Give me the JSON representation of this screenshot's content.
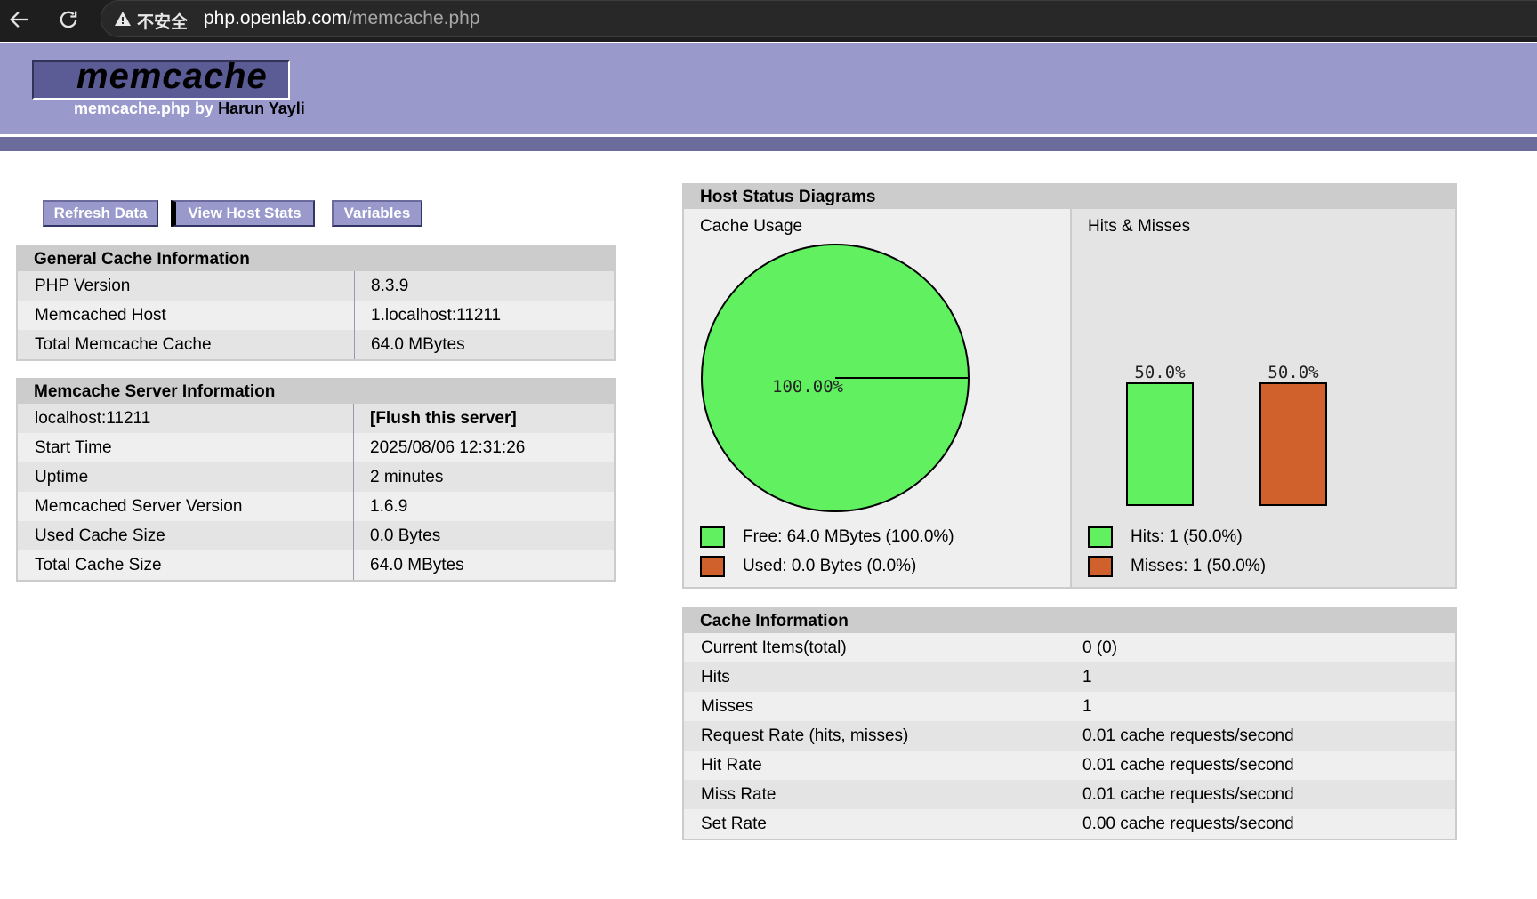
{
  "browser": {
    "insecure_label": "不安全",
    "url_host": "php.openlab.com",
    "url_path": "/memcache.php"
  },
  "header": {
    "logo": "memcache",
    "subtitle": "memcache.php by",
    "author": "Harun Yayli"
  },
  "menu": {
    "refresh": "Refresh Data",
    "host_stats": "View Host Stats",
    "variables": "Variables"
  },
  "general": {
    "title": "General Cache Information",
    "rows": [
      {
        "k": "PHP Version",
        "v": "8.3.9"
      },
      {
        "k": "Memcached Host",
        "v": "1.localhost:11211"
      },
      {
        "k": "Total Memcache Cache",
        "v": "64.0 MBytes"
      }
    ]
  },
  "server": {
    "title": "Memcache Server Information",
    "host": "localhost:11211",
    "flush": "[Flush this server]",
    "rows": [
      {
        "k": "Start Time",
        "v": "2025/08/06 12:31:26"
      },
      {
        "k": "Uptime",
        "v": "2 minutes"
      },
      {
        "k": "Memcached Server Version",
        "v": "1.6.9"
      },
      {
        "k": "Used Cache Size",
        "v": "0.0 Bytes"
      },
      {
        "k": "Total Cache Size",
        "v": "64.0 MBytes"
      }
    ]
  },
  "diagrams": {
    "title": "Host Status Diagrams",
    "cache_usage_title": "Cache Usage",
    "hits_misses_title": "Hits & Misses",
    "free_legend": "Free: 64.0 MBytes (100.0%)",
    "used_legend": "Used: 0.0 Bytes (0.0%)",
    "hits_legend": "Hits: 1 (50.0%)",
    "misses_legend": "Misses: 1 (50.0%)",
    "colors": {
      "green": "#60f060",
      "orange": "#d0602c"
    }
  },
  "chart_data": [
    {
      "type": "pie",
      "title": "Cache Usage",
      "categories": [
        "Free",
        "Used"
      ],
      "values": [
        100.0,
        0.0
      ],
      "data_labels": [
        "100.00%"
      ]
    },
    {
      "type": "bar",
      "title": "Hits & Misses",
      "categories": [
        "Hits",
        "Misses"
      ],
      "values": [
        50.0,
        50.0
      ],
      "data_labels": [
        "50.0%",
        "50.0%"
      ]
    }
  ],
  "cache_info": {
    "title": "Cache Information",
    "rows": [
      {
        "k": "Current Items(total)",
        "v": "0 (0)"
      },
      {
        "k": "Hits",
        "v": "1"
      },
      {
        "k": "Misses",
        "v": "1"
      },
      {
        "k": "Request Rate (hits, misses)",
        "v": "0.01 cache requests/second"
      },
      {
        "k": "Hit Rate",
        "v": "0.01 cache requests/second"
      },
      {
        "k": "Miss Rate",
        "v": "0.01 cache requests/second"
      },
      {
        "k": "Set Rate",
        "v": "0.00 cache requests/second"
      }
    ]
  }
}
